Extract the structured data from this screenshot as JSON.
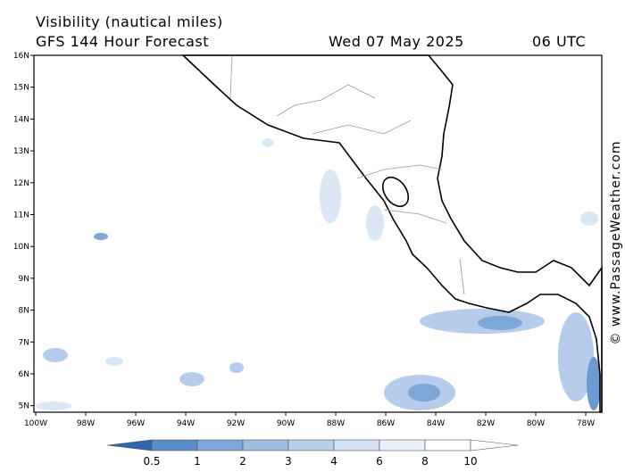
{
  "header": {
    "title": "Visibility (nautical miles)",
    "subtitle": "GFS 144 Hour Forecast",
    "date": "Wed 07 May 2025",
    "time": "06 UTC"
  },
  "map": {
    "lat_labels": [
      "16N",
      "15N",
      "14N",
      "13N",
      "12N",
      "11N",
      "10N",
      "9N",
      "8N",
      "7N",
      "6N",
      "5N"
    ],
    "lon_labels": [
      "100W",
      "98W",
      "96W",
      "94W",
      "92W",
      "90W",
      "88W",
      "86W",
      "84W",
      "82W",
      "80W",
      "78W"
    ]
  },
  "colorbar": {
    "labels": [
      "0.5",
      "1",
      "2",
      "3",
      "4",
      "6",
      "8",
      "10"
    ]
  },
  "credit": "© www.PassageWeather.com"
}
